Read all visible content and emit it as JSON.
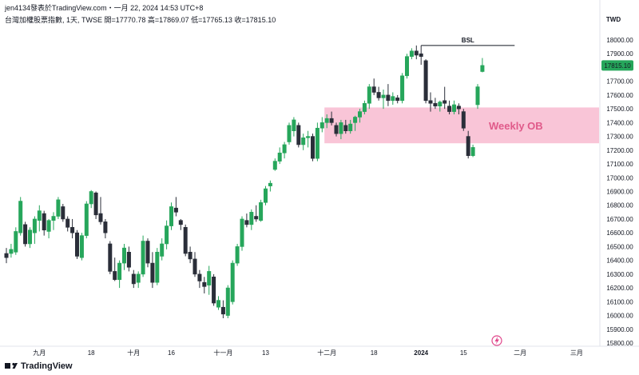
{
  "header": {
    "attribution": "jen4134發表於TradingView.com・一月 22, 2024 14:53 UTC+8",
    "symbol_line": "台灣加權股票指數, 1天, TWSE",
    "ohlc": "開=17770.78  高=17869.07  低=17765.13  收=17815.10"
  },
  "price_axis": {
    "currency": "TWD",
    "current_price": "17815.10"
  },
  "annotations": {
    "bsl_label": "BSL",
    "ob_label": "Weekly OB"
  },
  "footer": {
    "brand": "TradingView"
  },
  "colors": {
    "up": "#26a65b",
    "down": "#2a2e39",
    "ob_zone": "#f8bbd0",
    "ob_text": "#e05a8a",
    "price_badge": "#26a65b"
  },
  "chart_data": {
    "type": "candlestick",
    "title": "台灣加權股票指數, 1天, TWSE",
    "ylabel": "TWD",
    "ylim": [
      15800,
      18100
    ],
    "y_ticks": [
      15800,
      15900,
      16000,
      16100,
      16200,
      16300,
      16400,
      16500,
      16600,
      16700,
      16800,
      16900,
      17000,
      17100,
      17200,
      17300,
      17400,
      17500,
      17600,
      17700,
      17800,
      17900,
      18000
    ],
    "x_ticks": [
      {
        "label": "九月",
        "index": 7
      },
      {
        "label": "18",
        "index": 18
      },
      {
        "label": "十月",
        "index": 27
      },
      {
        "label": "16",
        "index": 35
      },
      {
        "label": "十一月",
        "index": 46
      },
      {
        "label": "13",
        "index": 55
      },
      {
        "label": "十二月",
        "index": 68
      },
      {
        "label": "18",
        "index": 78
      },
      {
        "label": "2024",
        "index": 88
      },
      {
        "label": "15",
        "index": 97
      },
      {
        "label": "二月",
        "index": 109
      },
      {
        "label": "三月",
        "index": 121
      }
    ],
    "candles": [
      {
        "o": 16450,
        "h": 16490,
        "l": 16380,
        "c": 16420
      },
      {
        "o": 16450,
        "h": 16520,
        "l": 16420,
        "c": 16480
      },
      {
        "o": 16460,
        "h": 16640,
        "l": 16440,
        "c": 16610
      },
      {
        "o": 16600,
        "h": 16860,
        "l": 16580,
        "c": 16830
      },
      {
        "o": 16660,
        "h": 16680,
        "l": 16500,
        "c": 16520
      },
      {
        "o": 16520,
        "h": 16640,
        "l": 16490,
        "c": 16620
      },
      {
        "o": 16600,
        "h": 16720,
        "l": 16520,
        "c": 16700
      },
      {
        "o": 16690,
        "h": 16800,
        "l": 16610,
        "c": 16760
      },
      {
        "o": 16740,
        "h": 16760,
        "l": 16580,
        "c": 16620
      },
      {
        "o": 16610,
        "h": 16700,
        "l": 16560,
        "c": 16690
      },
      {
        "o": 16690,
        "h": 16750,
        "l": 16620,
        "c": 16720
      },
      {
        "o": 16720,
        "h": 16860,
        "l": 16700,
        "c": 16840
      },
      {
        "o": 16790,
        "h": 16810,
        "l": 16680,
        "c": 16700
      },
      {
        "o": 16700,
        "h": 16720,
        "l": 16610,
        "c": 16640
      },
      {
        "o": 16640,
        "h": 16700,
        "l": 16560,
        "c": 16600
      },
      {
        "o": 16600,
        "h": 16620,
        "l": 16410,
        "c": 16430
      },
      {
        "o": 16420,
        "h": 16600,
        "l": 16400,
        "c": 16580
      },
      {
        "o": 16580,
        "h": 16830,
        "l": 16560,
        "c": 16810
      },
      {
        "o": 16810,
        "h": 16910,
        "l": 16780,
        "c": 16900
      },
      {
        "o": 16890,
        "h": 16900,
        "l": 16700,
        "c": 16730
      },
      {
        "o": 16740,
        "h": 16860,
        "l": 16660,
        "c": 16680
      },
      {
        "o": 16680,
        "h": 16700,
        "l": 16560,
        "c": 16600
      },
      {
        "o": 16520,
        "h": 16540,
        "l": 16300,
        "c": 16320
      },
      {
        "o": 16320,
        "h": 16420,
        "l": 16250,
        "c": 16260
      },
      {
        "o": 16260,
        "h": 16400,
        "l": 16200,
        "c": 16380
      },
      {
        "o": 16380,
        "h": 16520,
        "l": 16330,
        "c": 16490
      },
      {
        "o": 16460,
        "h": 16500,
        "l": 16320,
        "c": 16350
      },
      {
        "o": 16300,
        "h": 16330,
        "l": 16200,
        "c": 16230
      },
      {
        "o": 16240,
        "h": 16320,
        "l": 16200,
        "c": 16300
      },
      {
        "o": 16300,
        "h": 16580,
        "l": 16280,
        "c": 16540
      },
      {
        "o": 16540,
        "h": 16560,
        "l": 16350,
        "c": 16380
      },
      {
        "o": 16380,
        "h": 16460,
        "l": 16200,
        "c": 16240
      },
      {
        "o": 16240,
        "h": 16490,
        "l": 16220,
        "c": 16460
      },
      {
        "o": 16430,
        "h": 16560,
        "l": 16400,
        "c": 16520
      },
      {
        "o": 16520,
        "h": 16690,
        "l": 16480,
        "c": 16650
      },
      {
        "o": 16650,
        "h": 16820,
        "l": 16620,
        "c": 16790
      },
      {
        "o": 16780,
        "h": 16860,
        "l": 16720,
        "c": 16750
      },
      {
        "o": 16690,
        "h": 16700,
        "l": 16620,
        "c": 16660
      },
      {
        "o": 16640,
        "h": 16660,
        "l": 16430,
        "c": 16450
      },
      {
        "o": 16460,
        "h": 16500,
        "l": 16380,
        "c": 16410
      },
      {
        "o": 16410,
        "h": 16460,
        "l": 16280,
        "c": 16300
      },
      {
        "o": 16300,
        "h": 16330,
        "l": 16200,
        "c": 16250
      },
      {
        "o": 16240,
        "h": 16280,
        "l": 16160,
        "c": 16210
      },
      {
        "o": 16220,
        "h": 16360,
        "l": 16150,
        "c": 16320
      },
      {
        "o": 16280,
        "h": 16300,
        "l": 16070,
        "c": 16090
      },
      {
        "o": 16060,
        "h": 16140,
        "l": 16040,
        "c": 16110
      },
      {
        "o": 16060,
        "h": 16110,
        "l": 15980,
        "c": 16010
      },
      {
        "o": 16000,
        "h": 16220,
        "l": 15980,
        "c": 16200
      },
      {
        "o": 16100,
        "h": 16400,
        "l": 16080,
        "c": 16380
      },
      {
        "o": 16380,
        "h": 16520,
        "l": 16360,
        "c": 16500
      },
      {
        "o": 16500,
        "h": 16720,
        "l": 16470,
        "c": 16700
      },
      {
        "o": 16690,
        "h": 16740,
        "l": 16640,
        "c": 16660
      },
      {
        "o": 16660,
        "h": 16770,
        "l": 16620,
        "c": 16750
      },
      {
        "o": 16720,
        "h": 16800,
        "l": 16680,
        "c": 16700
      },
      {
        "o": 16690,
        "h": 16840,
        "l": 16680,
        "c": 16820
      },
      {
        "o": 16820,
        "h": 16940,
        "l": 16800,
        "c": 16920
      },
      {
        "o": 16940,
        "h": 16980,
        "l": 16900,
        "c": 16960
      },
      {
        "o": 17060,
        "h": 17140,
        "l": 17050,
        "c": 17120
      },
      {
        "o": 17120,
        "h": 17220,
        "l": 17100,
        "c": 17180
      },
      {
        "o": 17180,
        "h": 17260,
        "l": 17140,
        "c": 17240
      },
      {
        "o": 17260,
        "h": 17400,
        "l": 17240,
        "c": 17380
      },
      {
        "o": 17340,
        "h": 17440,
        "l": 17300,
        "c": 17420
      },
      {
        "o": 17380,
        "h": 17400,
        "l": 17220,
        "c": 17240
      },
      {
        "o": 17240,
        "h": 17320,
        "l": 17200,
        "c": 17290
      },
      {
        "o": 17290,
        "h": 17340,
        "l": 17220,
        "c": 17300
      },
      {
        "o": 17300,
        "h": 17320,
        "l": 17120,
        "c": 17140
      },
      {
        "o": 17140,
        "h": 17400,
        "l": 17120,
        "c": 17360
      },
      {
        "o": 17360,
        "h": 17440,
        "l": 17330,
        "c": 17400
      },
      {
        "o": 17400,
        "h": 17460,
        "l": 17360,
        "c": 17430
      },
      {
        "o": 17430,
        "h": 17480,
        "l": 17380,
        "c": 17400
      },
      {
        "o": 17380,
        "h": 17400,
        "l": 17300,
        "c": 17320
      },
      {
        "o": 17320,
        "h": 17420,
        "l": 17280,
        "c": 17400
      },
      {
        "o": 17380,
        "h": 17420,
        "l": 17320,
        "c": 17340
      },
      {
        "o": 17340,
        "h": 17420,
        "l": 17320,
        "c": 17390
      },
      {
        "o": 17400,
        "h": 17450,
        "l": 17340,
        "c": 17440
      },
      {
        "o": 17440,
        "h": 17500,
        "l": 17400,
        "c": 17480
      },
      {
        "o": 17480,
        "h": 17560,
        "l": 17460,
        "c": 17540
      },
      {
        "o": 17540,
        "h": 17680,
        "l": 17500,
        "c": 17660
      },
      {
        "o": 17660,
        "h": 17720,
        "l": 17600,
        "c": 17620
      },
      {
        "o": 17620,
        "h": 17660,
        "l": 17560,
        "c": 17580
      },
      {
        "o": 17580,
        "h": 17640,
        "l": 17500,
        "c": 17600
      },
      {
        "o": 17600,
        "h": 17680,
        "l": 17520,
        "c": 17560
      },
      {
        "o": 17560,
        "h": 17620,
        "l": 17530,
        "c": 17590
      },
      {
        "o": 17580,
        "h": 17600,
        "l": 17540,
        "c": 17560
      },
      {
        "o": 17560,
        "h": 17760,
        "l": 17540,
        "c": 17740
      },
      {
        "o": 17740,
        "h": 17900,
        "l": 17720,
        "c": 17880
      },
      {
        "o": 17880,
        "h": 17940,
        "l": 17860,
        "c": 17920
      },
      {
        "o": 17920,
        "h": 17960,
        "l": 17860,
        "c": 17890
      },
      {
        "o": 17900,
        "h": 17960,
        "l": 17820,
        "c": 17880
      },
      {
        "o": 17850,
        "h": 17860,
        "l": 17540,
        "c": 17560
      },
      {
        "o": 17560,
        "h": 17620,
        "l": 17480,
        "c": 17540
      },
      {
        "o": 17540,
        "h": 17580,
        "l": 17500,
        "c": 17520
      },
      {
        "o": 17520,
        "h": 17560,
        "l": 17480,
        "c": 17550
      },
      {
        "o": 17560,
        "h": 17660,
        "l": 17500,
        "c": 17540
      },
      {
        "o": 17520,
        "h": 17560,
        "l": 17460,
        "c": 17480
      },
      {
        "o": 17480,
        "h": 17560,
        "l": 17460,
        "c": 17530
      },
      {
        "o": 17520,
        "h": 17540,
        "l": 17460,
        "c": 17500
      },
      {
        "o": 17480,
        "h": 17500,
        "l": 17340,
        "c": 17360
      },
      {
        "o": 17300,
        "h": 17340,
        "l": 17140,
        "c": 17160
      },
      {
        "o": 17160,
        "h": 17240,
        "l": 17150,
        "c": 17220
      },
      {
        "o": 17530,
        "h": 17680,
        "l": 17500,
        "c": 17660
      },
      {
        "o": 17770.78,
        "h": 17869.07,
        "l": 17765.13,
        "c": 17815.1
      }
    ],
    "zones": [
      {
        "label": "Weekly OB",
        "from_index": 68,
        "y_low": 17250,
        "y_high": 17510
      }
    ],
    "levels": [
      {
        "label": "BSL",
        "value": 17960,
        "from_index": 88,
        "to_index": 107
      }
    ],
    "grid": false,
    "legend": "none"
  }
}
